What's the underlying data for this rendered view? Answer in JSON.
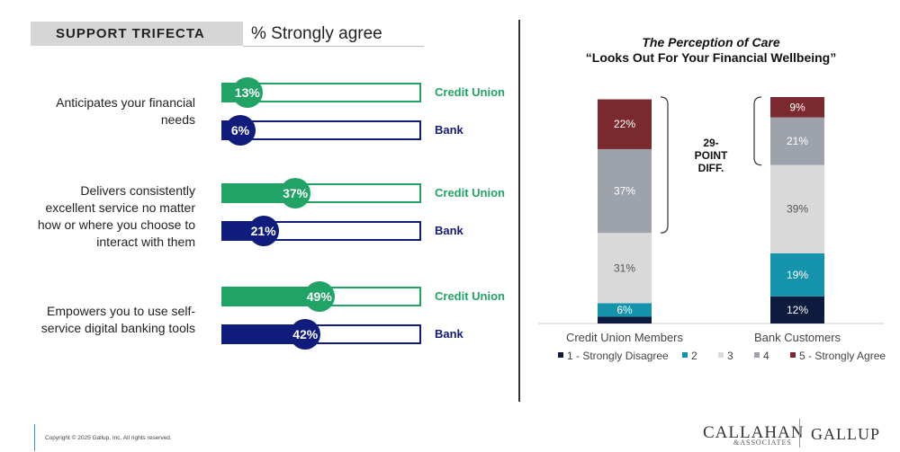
{
  "header": {
    "title": "SUPPORT TRIFECTA",
    "subtitle": "% Strongly agree"
  },
  "colors": {
    "credit_union": "#21a366",
    "bank": "#101c7c",
    "ink": "#222222"
  },
  "left_chart_data": {
    "type": "bar",
    "series_names": [
      "Credit Union",
      "Bank"
    ],
    "items": [
      {
        "label": "Anticipates your financial needs",
        "credit_union": {
          "value": 13,
          "text": "13%",
          "name": "Credit Union"
        },
        "bank": {
          "value": 6,
          "text": "6%",
          "name": "Bank"
        }
      },
      {
        "label": "Delivers consistently excellent service no matter how or where you choose to interact with them",
        "credit_union": {
          "value": 37,
          "text": "37%",
          "name": "Credit Union"
        },
        "bank": {
          "value": 21,
          "text": "21%",
          "name": "Bank"
        }
      },
      {
        "label": "Empowers you to use self-service digital banking tools",
        "credit_union": {
          "value": 49,
          "text": "49%",
          "name": "Credit Union"
        },
        "bank": {
          "value": 42,
          "text": "42%",
          "name": "Bank"
        }
      }
    ]
  },
  "chart_data": {
    "type": "bar",
    "stacked": true,
    "title": "The Perception of Care",
    "subtitle": "“Looks Out For Your Financial Wellbeing”",
    "categories": [
      "Credit Union Members",
      "Bank Customers"
    ],
    "series": [
      {
        "name": "1 - Strongly Disagree",
        "color": "#0d1b3e",
        "values": [
          3,
          12
        ],
        "labels": [
          "",
          "12%"
        ]
      },
      {
        "name": "2",
        "color": "#1593ad",
        "values": [
          6,
          19
        ],
        "labels": [
          "6%",
          "19%"
        ]
      },
      {
        "name": "3",
        "color": "#d9d9d9",
        "values": [
          31,
          39
        ],
        "labels": [
          "31%",
          "39%"
        ]
      },
      {
        "name": "4",
        "color": "#9ea3ab",
        "values": [
          37,
          21
        ],
        "labels": [
          "37%",
          "21%"
        ]
      },
      {
        "name": "5 - Strongly Agree",
        "color": "#7a2a2e",
        "values": [
          22,
          9
        ],
        "labels": [
          "22%",
          "9%"
        ]
      }
    ],
    "annotation": "29-\nPOINT\nDIFF.",
    "legend_position": "bottom",
    "ylim": [
      0,
      100
    ]
  },
  "footer": {
    "copyright": "Copyright © 2025 Gallup, Inc. All rights reserved.",
    "logo_callahan": "CALLAHAN",
    "logo_associates": "&ASSOCIATES",
    "logo_gallup": "GALLUP"
  }
}
